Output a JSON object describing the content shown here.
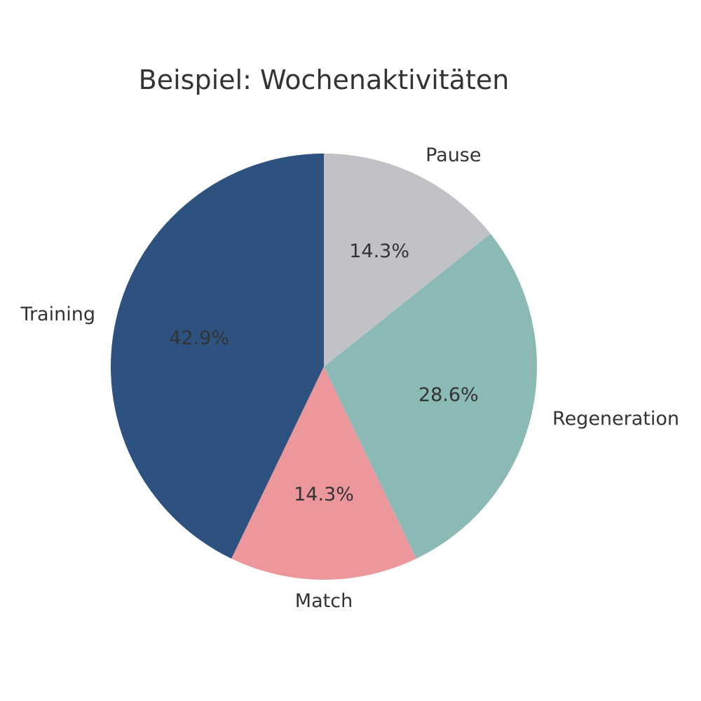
{
  "chart_data": {
    "type": "pie",
    "title": "Beispiel: Wochenaktivitäten",
    "start_angle_deg": 90,
    "direction": "counterclockwise",
    "slices": [
      {
        "label": "Training",
        "value": 42.9,
        "pct_label": "42.9%",
        "color": "#2e527f"
      },
      {
        "label": "Match",
        "value": 14.3,
        "pct_label": "14.3%",
        "color": "#ec979c"
      },
      {
        "label": "Regeneration",
        "value": 28.6,
        "pct_label": "28.6%",
        "color": "#8bbab6"
      },
      {
        "label": "Pause",
        "value": 14.3,
        "pct_label": "14.3%",
        "color": "#c1c2c5"
      }
    ]
  }
}
